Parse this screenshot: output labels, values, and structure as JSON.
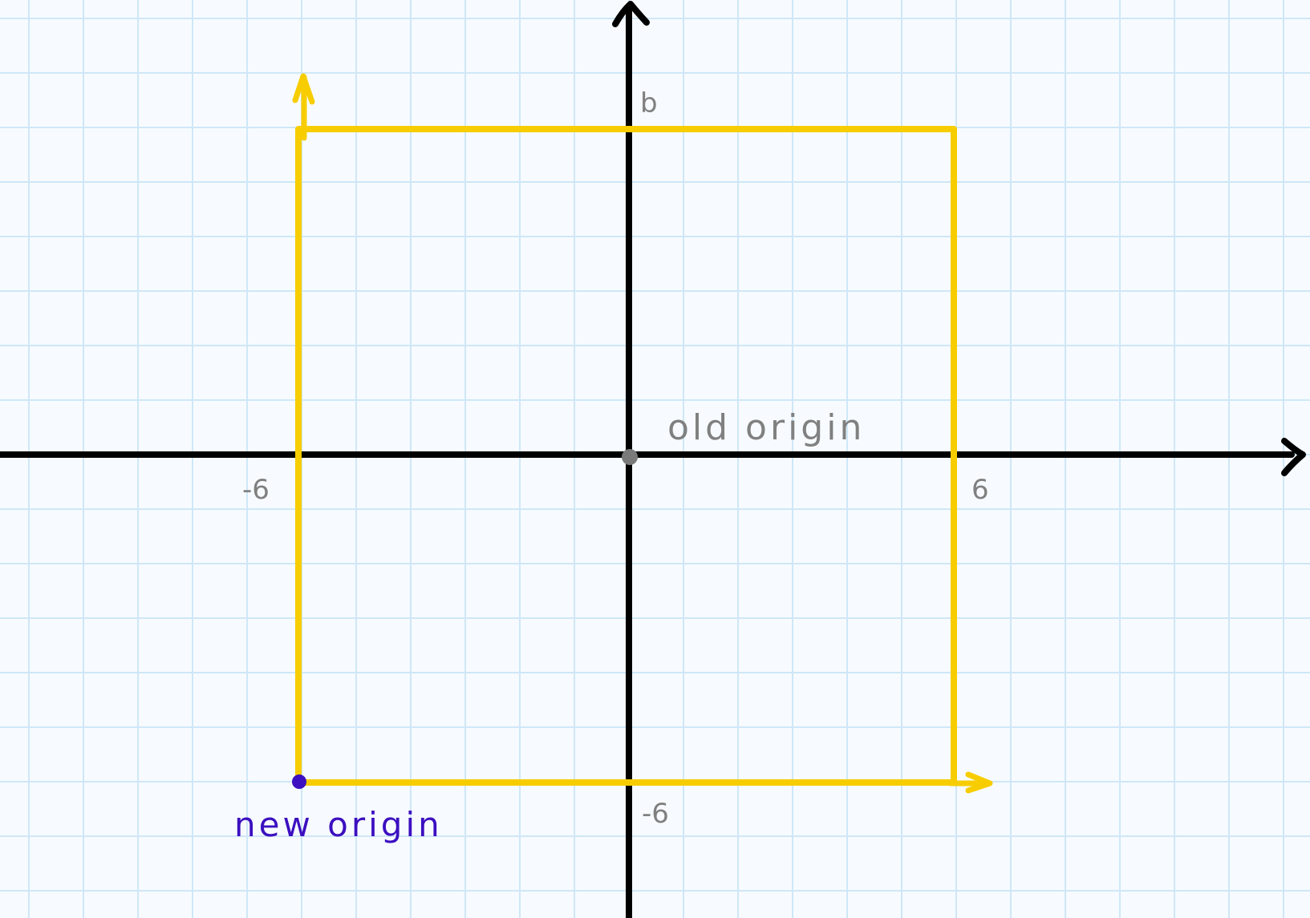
{
  "diagram": {
    "labels": {
      "y_top": "b",
      "x_left": "-6",
      "x_right": "6",
      "y_bottom": "-6",
      "old_origin": "old origin",
      "new_origin": "new origin"
    },
    "colors": {
      "background": "#f7fbff",
      "grid": "#cfe7f7",
      "axis": "#000000",
      "square": "#f7cd00",
      "old_origin": "#7a7a7a",
      "new_origin": "#3c0fc0",
      "label": "#808080"
    },
    "square": {
      "x_range": [
        -6,
        6
      ],
      "y_range": [
        -6,
        6
      ],
      "arrows": [
        "up from top-left corner",
        "right from bottom-right corner"
      ]
    },
    "points": {
      "old_origin": [
        0,
        0
      ],
      "new_origin": [
        -6,
        -6
      ]
    }
  }
}
